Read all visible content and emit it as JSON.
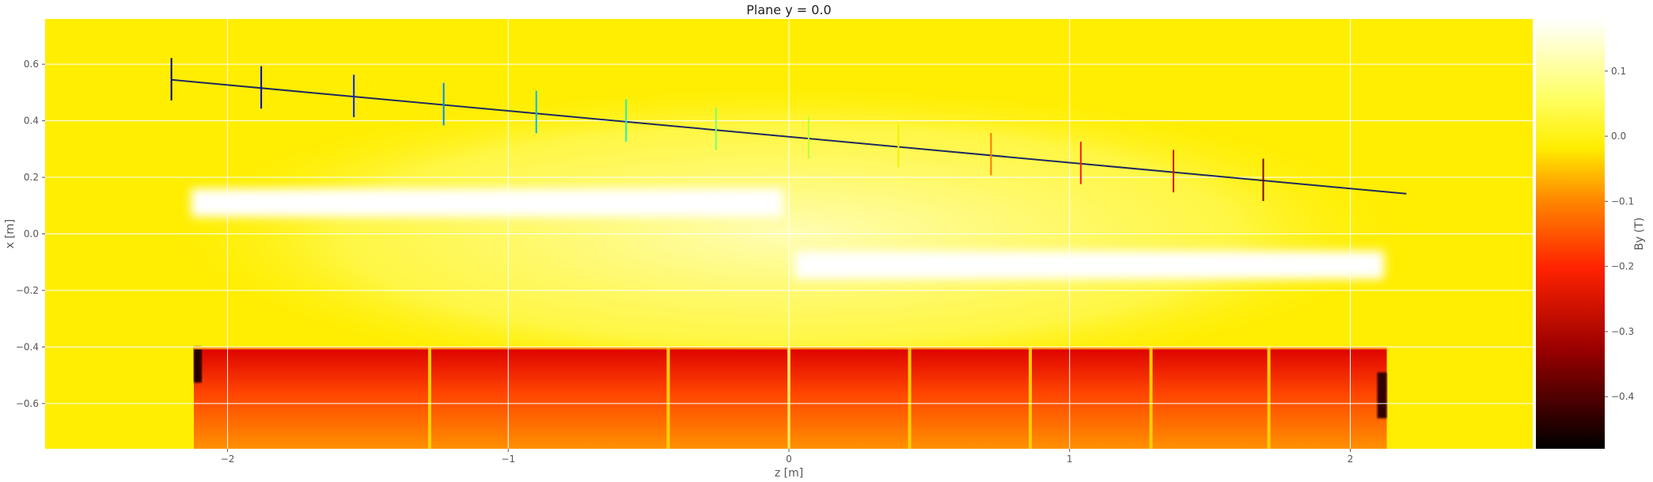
{
  "chart_data": {
    "type": "heatmap",
    "title": "Plane y = 0.0",
    "xlabel": "z [m]",
    "ylabel": "x [m]",
    "colorbar_label": "By (T)",
    "colormap": "hot",
    "xlim": [
      -2.65,
      2.65
    ],
    "ylim": [
      -0.76,
      0.76
    ],
    "clim": [
      -0.48,
      0.18
    ],
    "grid": true,
    "x_ticks": [
      -2,
      -1,
      0,
      1,
      2
    ],
    "x_tick_labels": [
      "−2",
      "−1",
      "0",
      "1",
      "2"
    ],
    "y_ticks": [
      -0.6,
      -0.4,
      -0.2,
      0.0,
      0.2,
      0.4,
      0.6
    ],
    "y_tick_labels": [
      "−0.6",
      "−0.4",
      "−0.2",
      "0.0",
      "0.2",
      "0.4",
      "0.6"
    ],
    "colorbar_ticks": [
      -0.4,
      -0.3,
      -0.2,
      -0.1,
      0.0,
      0.1
    ],
    "colorbar_tick_labels": [
      "−0.4",
      "−0.3",
      "−0.2",
      "−0.1",
      "0.0",
      "0.1"
    ],
    "background_field": 0.02,
    "field_regions": [
      {
        "z_range": [
          -2.13,
          -0.02
        ],
        "x_range": [
          0.06,
          0.16
        ],
        "value": 0.17
      },
      {
        "z_range": [
          0.02,
          2.12
        ],
        "x_range": [
          -0.16,
          -0.06
        ],
        "value": 0.17
      },
      {
        "z_range": [
          -2.12,
          2.13
        ],
        "x_range": [
          -0.76,
          -0.4
        ],
        "value_top": -0.25,
        "value_bottom": -0.1
      }
    ],
    "segment_boundaries_z": [
      -1.28,
      -0.43,
      0.43,
      0.86,
      1.29,
      1.71
    ],
    "trajectory": {
      "z": [
        -2.2,
        2.2
      ],
      "x": [
        0.545,
        0.142
      ],
      "color": "#1f2a5e"
    },
    "error_bars": [
      {
        "z": -2.2,
        "x": 0.547,
        "half_height": 0.075,
        "color": "#000080"
      },
      {
        "z": -1.88,
        "x": 0.518,
        "half_height": 0.075,
        "color": "#0000cd"
      },
      {
        "z": -1.55,
        "x": 0.488,
        "half_height": 0.075,
        "color": "#0022ff"
      },
      {
        "z": -1.23,
        "x": 0.459,
        "half_height": 0.075,
        "color": "#0088ff"
      },
      {
        "z": -0.9,
        "x": 0.431,
        "half_height": 0.075,
        "color": "#00bbee"
      },
      {
        "z": -0.58,
        "x": 0.401,
        "half_height": 0.075,
        "color": "#22eebb"
      },
      {
        "z": -0.26,
        "x": 0.372,
        "half_height": 0.075,
        "color": "#77ff77"
      },
      {
        "z": 0.07,
        "x": 0.341,
        "half_height": 0.075,
        "color": "#bbff33"
      },
      {
        "z": 0.39,
        "x": 0.311,
        "half_height": 0.075,
        "color": "#f5ee00"
      },
      {
        "z": 0.72,
        "x": 0.282,
        "half_height": 0.075,
        "color": "#ff7700"
      },
      {
        "z": 1.04,
        "x": 0.251,
        "half_height": 0.075,
        "color": "#ff2200"
      },
      {
        "z": 1.37,
        "x": 0.222,
        "half_height": 0.075,
        "color": "#cc0000"
      },
      {
        "z": 1.69,
        "x": 0.191,
        "half_height": 0.075,
        "color": "#800000"
      }
    ]
  }
}
